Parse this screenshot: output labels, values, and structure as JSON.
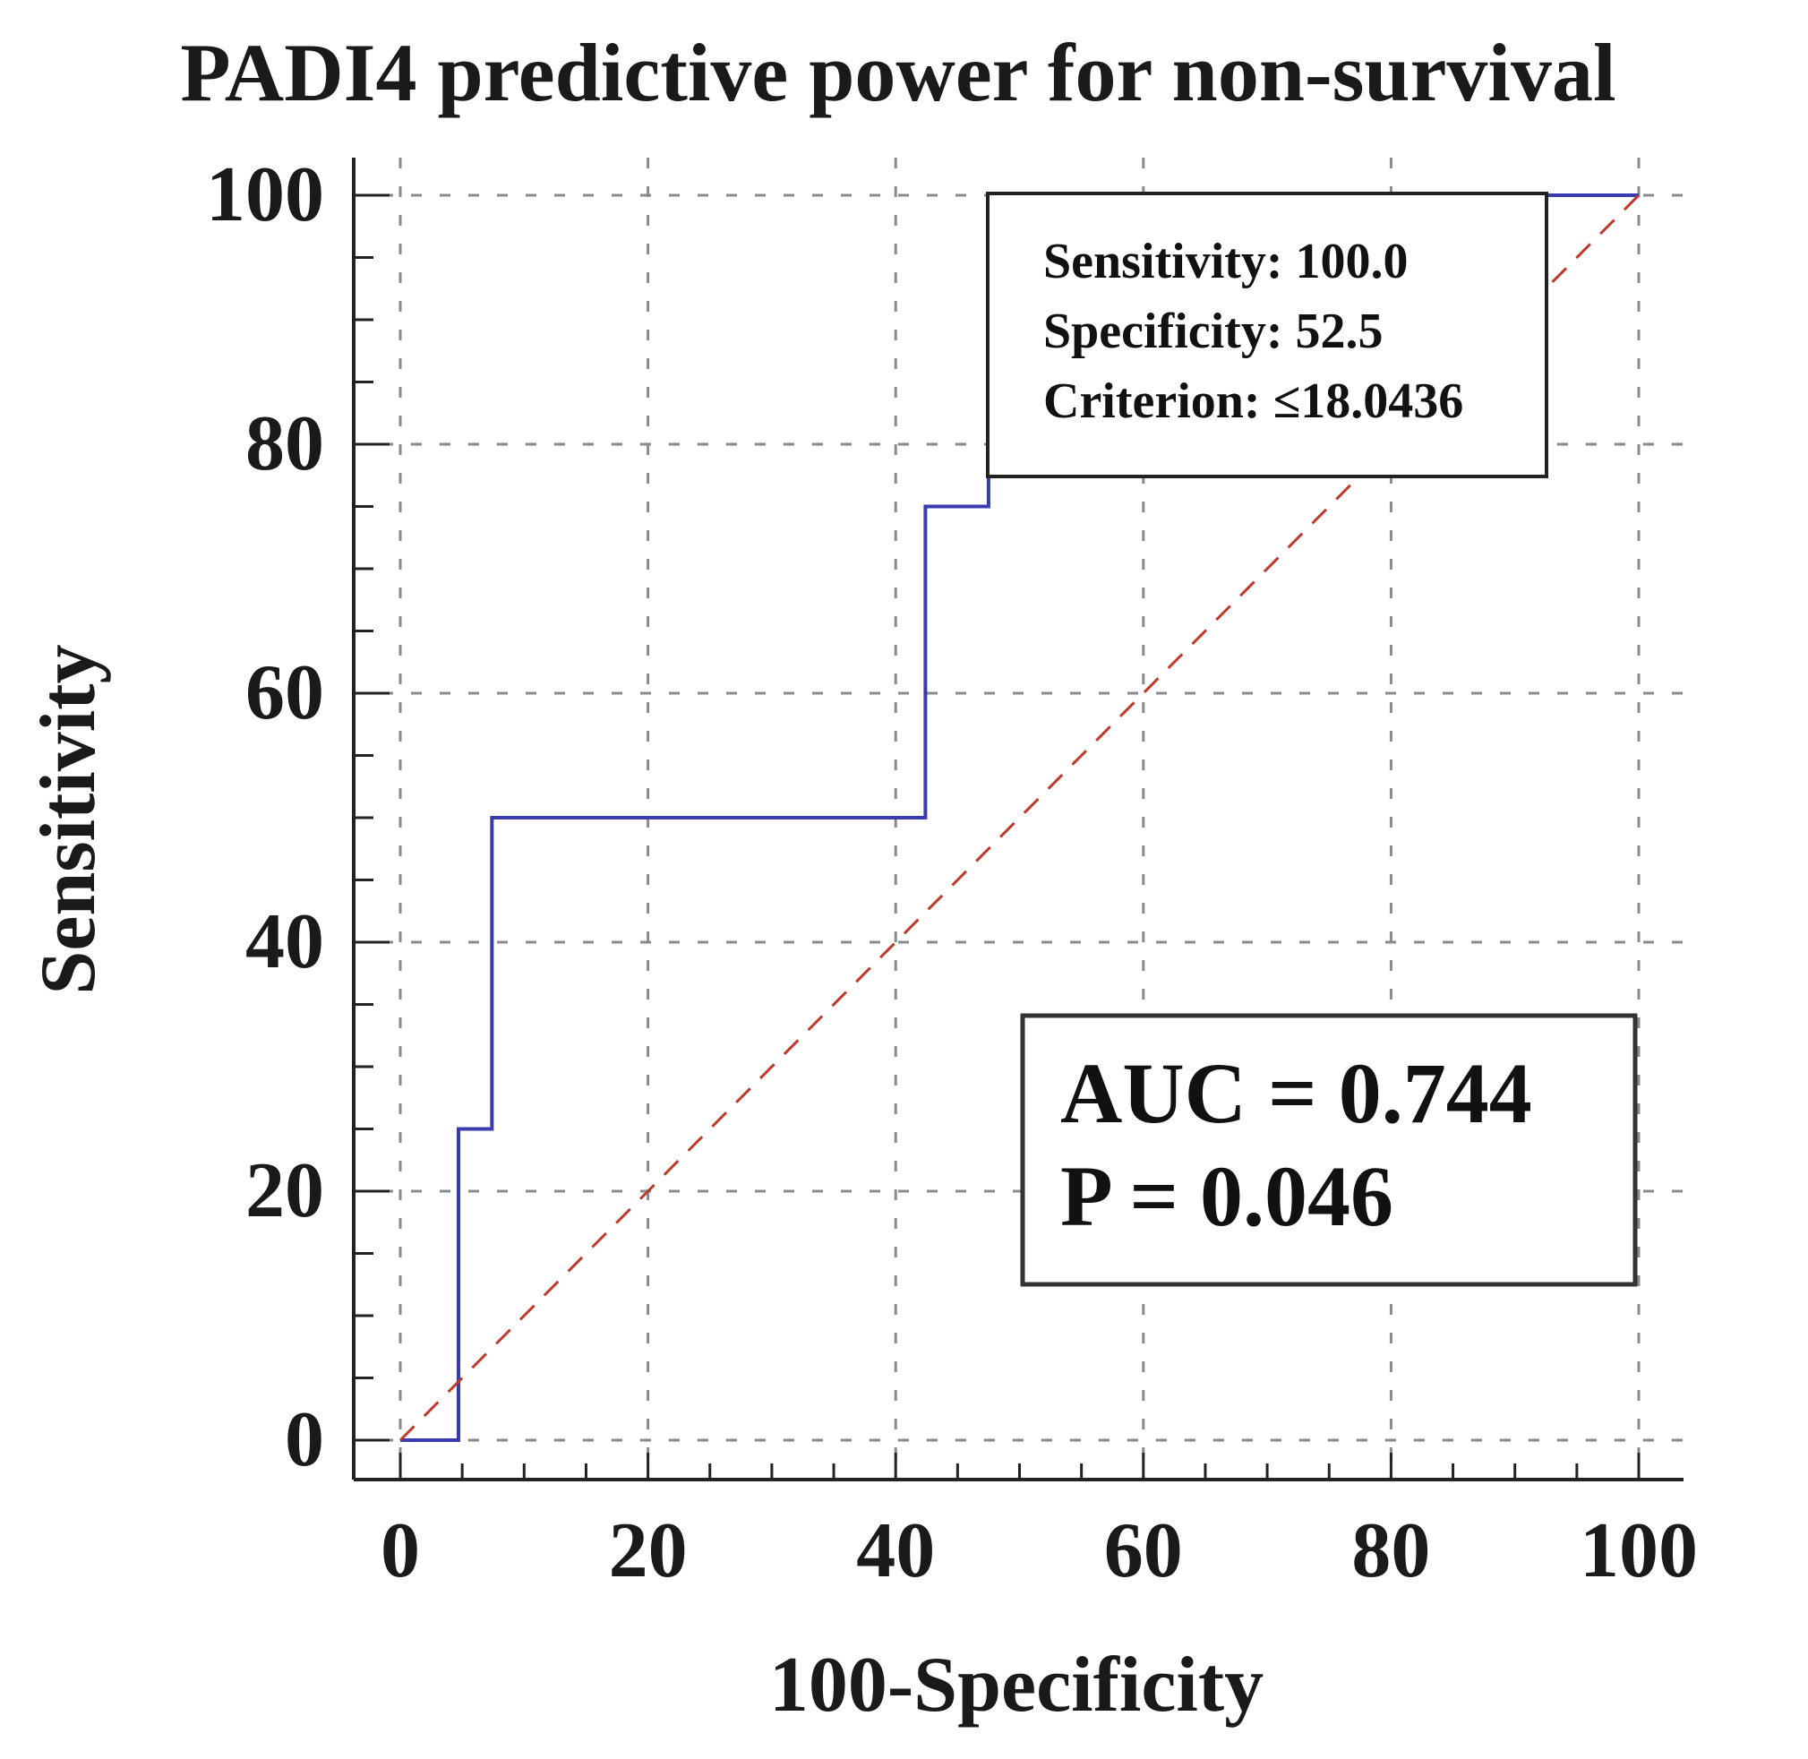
{
  "chart_data": {
    "type": "line",
    "title": "PADI4 predictive power for non-survival",
    "xlabel": "100-Specificity",
    "ylabel": "Sensitivity",
    "xlim": [
      0,
      100
    ],
    "ylim": [
      0,
      100
    ],
    "x_ticks": [
      "0",
      "20",
      "40",
      "60",
      "80",
      "100"
    ],
    "y_ticks": [
      "0",
      "20",
      "40",
      "60",
      "80",
      "100"
    ],
    "grid": true,
    "series": [
      {
        "color": "#3b3bb0",
        "style": "solid",
        "x": [
          0,
          4.7,
          4.7,
          7.4,
          7.4,
          42.4,
          42.4,
          47.5,
          47.5,
          100
        ],
        "y": [
          0,
          0,
          25,
          25,
          50,
          50,
          75,
          75,
          100,
          100
        ]
      },
      {
        "color": "#c0392b",
        "style": "dashed",
        "x": [
          0,
          100
        ],
        "y": [
          0,
          100
        ]
      }
    ],
    "annotations": {
      "criterion_box": {
        "lines": [
          "Sensitivity: 100.0",
          "Specificity: 52.5",
          "Criterion: ≤18.0436"
        ]
      },
      "auc_box": {
        "lines": [
          "AUC = 0.744",
          "P = 0.046"
        ]
      }
    }
  }
}
